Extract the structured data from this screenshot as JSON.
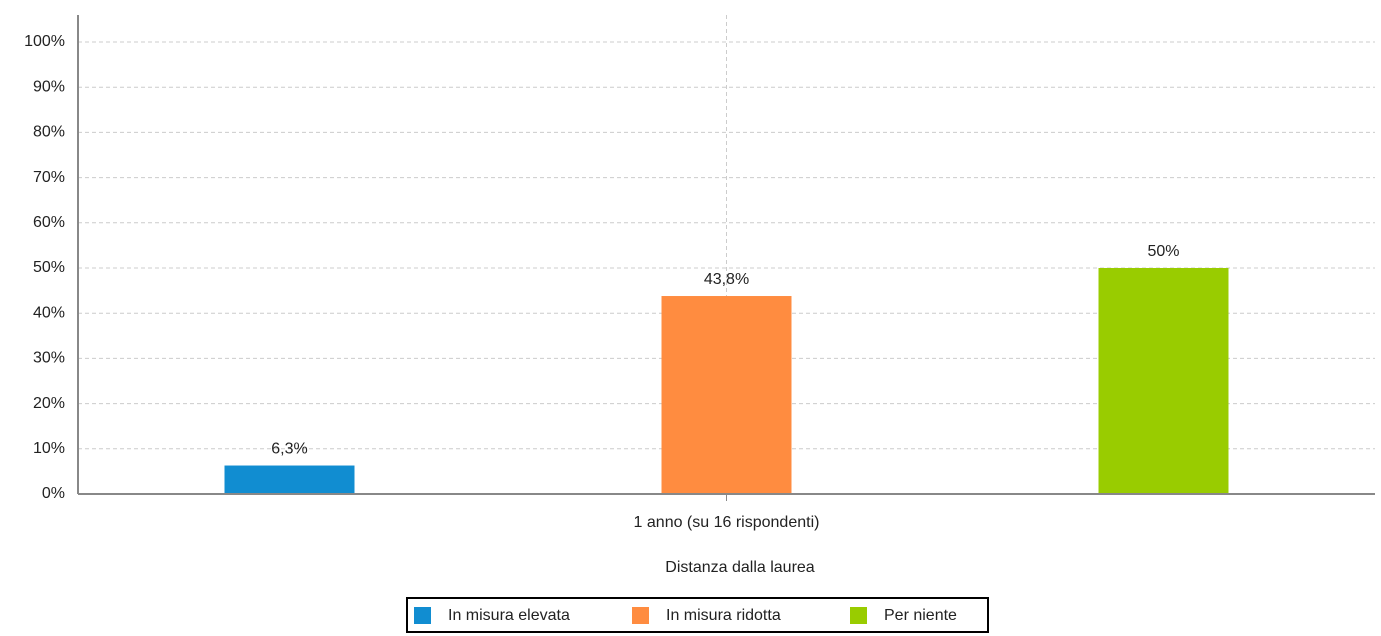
{
  "chart_data": {
    "type": "bar",
    "categories": [
      "1 anno (su 16 rispondenti)"
    ],
    "x_label": "Distanza dalla laurea",
    "series": [
      {
        "name": "In misura elevata",
        "color": "#118dd1",
        "values": [
          6.3
        ],
        "value_labels": [
          "6,3%"
        ]
      },
      {
        "name": "In misura ridotta",
        "color": "#ff8c40",
        "values": [
          43.8
        ],
        "value_labels": [
          "43,8%"
        ]
      },
      {
        "name": "Per niente",
        "color": "#99cc00",
        "values": [
          50
        ],
        "value_labels": [
          "50%"
        ]
      }
    ],
    "ylim": [
      0,
      100
    ],
    "yticks": [
      {
        "value": 0,
        "label": "0%"
      },
      {
        "value": 10,
        "label": "10%"
      },
      {
        "value": 20,
        "label": "20%"
      },
      {
        "value": 30,
        "label": "30%"
      },
      {
        "value": 40,
        "label": "40%"
      },
      {
        "value": 50,
        "label": "50%"
      },
      {
        "value": 60,
        "label": "60%"
      },
      {
        "value": 70,
        "label": "70%"
      },
      {
        "value": 80,
        "label": "80%"
      },
      {
        "value": 90,
        "label": "90%"
      },
      {
        "value": 100,
        "label": "100%"
      }
    ],
    "grid": true
  }
}
